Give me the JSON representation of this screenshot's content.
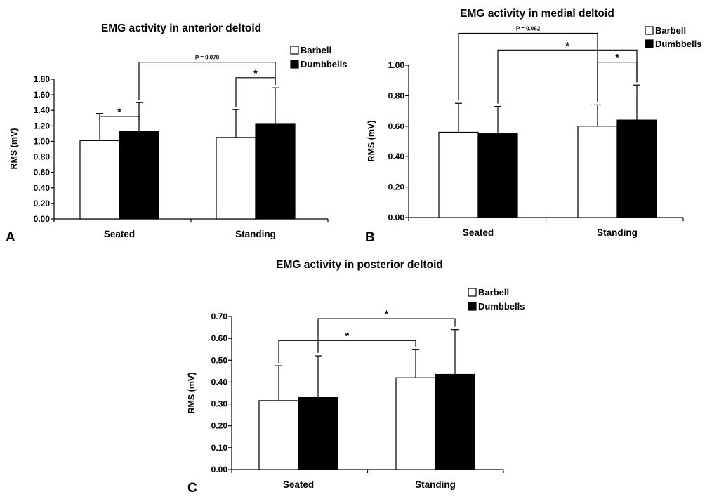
{
  "chart_data": [
    {
      "panel": "A",
      "type": "bar",
      "title": "EMG activity in anterior deltoid",
      "ylabel": "RMS (mV)",
      "xlabel": "",
      "ylim": [
        0,
        1.8
      ],
      "ytick_step": 0.2,
      "yticks": [
        "0.00",
        "0.20",
        "0.40",
        "0.60",
        "0.80",
        "1.00",
        "1.20",
        "1.40",
        "1.60",
        "1.80"
      ],
      "categories": [
        "Seated",
        "Standing"
      ],
      "series": [
        {
          "name": "Barbell",
          "color": "#ffffff",
          "values": [
            1.01,
            1.05
          ],
          "errors": [
            0.35,
            0.36
          ]
        },
        {
          "name": "Dumbbells",
          "color": "#000000",
          "values": [
            1.13,
            1.23
          ],
          "errors": [
            0.37,
            0.46
          ]
        }
      ],
      "legend": [
        "Barbell",
        "Dumbbells"
      ],
      "legend_position": "top-right",
      "significance": [
        {
          "from": [
            0,
            0
          ],
          "to": [
            0,
            1
          ],
          "level": 1.32,
          "label": "*"
        },
        {
          "from": [
            1,
            0
          ],
          "to": [
            1,
            1
          ],
          "level": 1.82,
          "label": "*"
        },
        {
          "from": [
            0,
            1
          ],
          "to": [
            1,
            1
          ],
          "level": 2.02,
          "label": "P = 0.070"
        }
      ]
    },
    {
      "panel": "B",
      "type": "bar",
      "title": "EMG activity in medial deltoid",
      "ylabel": "RMS (mV)",
      "xlabel": "",
      "ylim": [
        0,
        1.0
      ],
      "ytick_step": 0.2,
      "yticks": [
        "0.00",
        "0.20",
        "0.40",
        "0.60",
        "0.80",
        "1.00"
      ],
      "categories": [
        "Seated",
        "Standing"
      ],
      "series": [
        {
          "name": "Barbell",
          "color": "#ffffff",
          "values": [
            0.56,
            0.6
          ],
          "errors": [
            0.19,
            0.14
          ]
        },
        {
          "name": "Dumbbells",
          "color": "#000000",
          "values": [
            0.55,
            0.64
          ],
          "errors": [
            0.18,
            0.23
          ]
        }
      ],
      "legend": [
        "Barbell",
        "Dumbbells"
      ],
      "legend_position": "top-right",
      "significance": [
        {
          "from": [
            1,
            0
          ],
          "to": [
            1,
            1
          ],
          "level": 1.02,
          "label": "*"
        },
        {
          "from": [
            0,
            1
          ],
          "to": [
            1,
            1
          ],
          "level": 1.1,
          "label": "*"
        },
        {
          "from": [
            0,
            0
          ],
          "to": [
            1,
            0
          ],
          "level": 1.21,
          "label": "P = 0.062"
        }
      ]
    },
    {
      "panel": "C",
      "type": "bar",
      "title": "EMG activity in posterior deltoid",
      "ylabel": "RMS (mV)",
      "xlabel": "",
      "ylim": [
        0,
        0.7
      ],
      "ytick_step": 0.1,
      "yticks": [
        "0.00",
        "0.10",
        "0.20",
        "0.30",
        "0.40",
        "0.50",
        "0.60",
        "0.70"
      ],
      "categories": [
        "Seated",
        "Standing"
      ],
      "series": [
        {
          "name": "Barbell",
          "color": "#ffffff",
          "values": [
            0.315,
            0.42
          ],
          "errors": [
            0.16,
            0.13
          ]
        },
        {
          "name": "Dumbbells",
          "color": "#000000",
          "values": [
            0.33,
            0.435
          ],
          "errors": [
            0.19,
            0.205
          ]
        }
      ],
      "legend": [
        "Barbell",
        "Dumbbells"
      ],
      "legend_position": "top-right",
      "significance": [
        {
          "from": [
            0,
            0
          ],
          "to": [
            1,
            0
          ],
          "level": 0.59,
          "label": "*"
        },
        {
          "from": [
            0,
            1
          ],
          "to": [
            1,
            1
          ],
          "level": 0.69,
          "label": "*"
        }
      ]
    }
  ]
}
